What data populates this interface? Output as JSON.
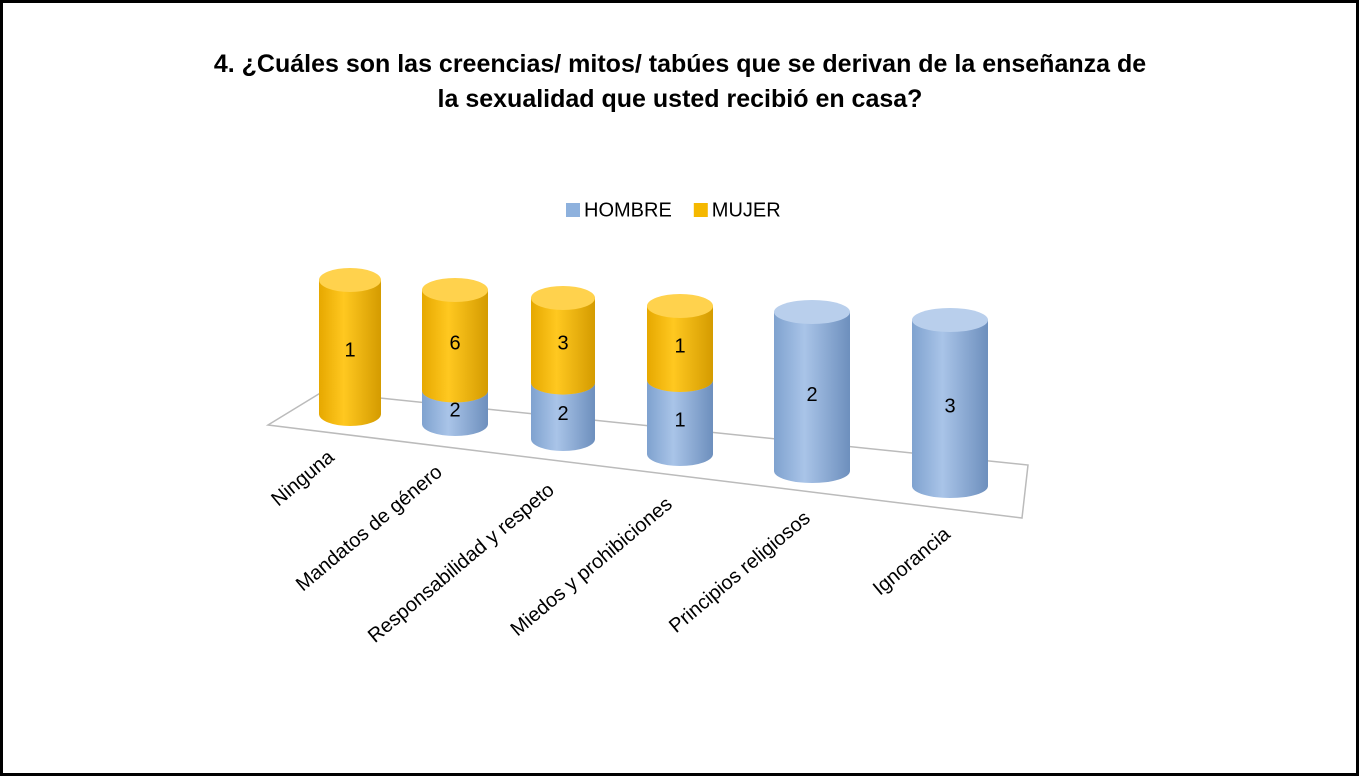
{
  "chart_data": {
    "type": "bar3d-cylinder",
    "stacking": "percent",
    "title": "4. ¿Cuáles son las creencias/ mitos/ tabúes que se derivan de la enseñanza de la sexualidad que usted recibió en casa?",
    "categories": [
      "Ninguna",
      "Mandatos de género",
      "Responsabilidad y respeto",
      "Miedos y prohibiciones",
      "Principios religiosos",
      "Ignorancia"
    ],
    "series": [
      {
        "name": "HOMBRE",
        "color": "#8eb1dd",
        "values": [
          null,
          2,
          2,
          1,
          2,
          3
        ]
      },
      {
        "name": "MUJER",
        "color": "#f5b800",
        "values": [
          1,
          6,
          3,
          1,
          null,
          null
        ]
      }
    ],
    "legend": "top"
  }
}
